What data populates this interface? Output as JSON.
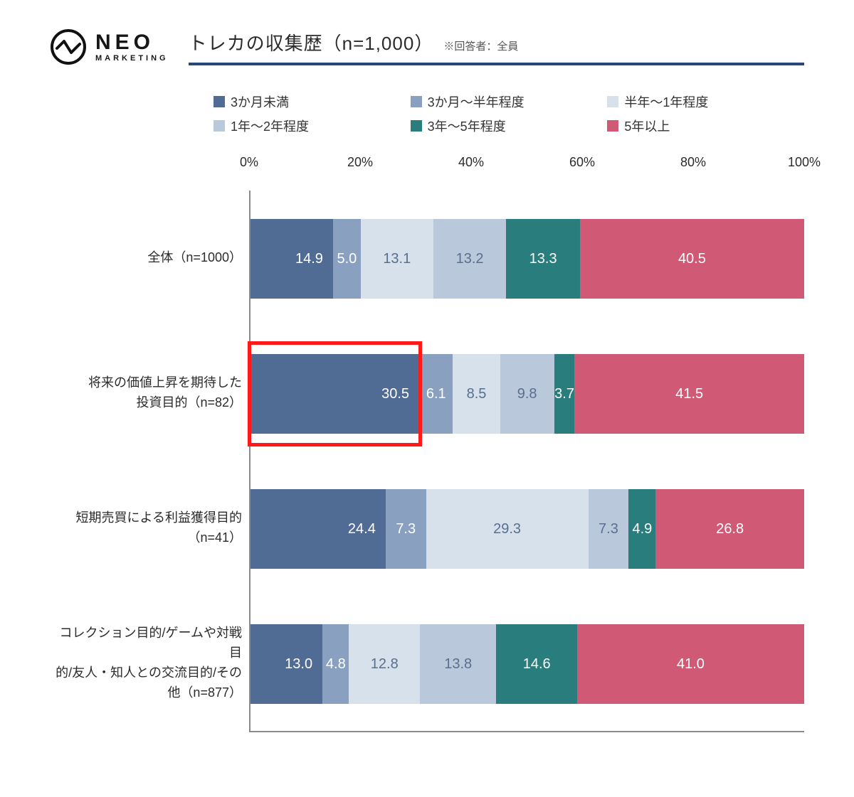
{
  "logo": {
    "brand": "NEO",
    "sub": "MARKETING"
  },
  "title": "トレカの収集歴（n=1,000）",
  "title_note": "※回答者：全員",
  "chart": {
    "type": "stacked-bar-horizontal",
    "x_axis": {
      "min": 0,
      "max": 100,
      "tick_step": 20,
      "suffix": "%",
      "ticks": [
        "0%",
        "20%",
        "40%",
        "60%",
        "80%",
        "100%"
      ]
    },
    "series": [
      {
        "key": "s1",
        "label": "3か月未満",
        "color": "#516c94"
      },
      {
        "key": "s2",
        "label": "3か月～半年程度",
        "color": "#8aa0c0"
      },
      {
        "key": "s3",
        "label": "半年～1年程度",
        "color": "#d7e1ec"
      },
      {
        "key": "s4",
        "label": "1年～2年程度",
        "color": "#b9c9db"
      },
      {
        "key": "s5",
        "label": "3年～5年程度",
        "color": "#2a7d7d"
      },
      {
        "key": "s6",
        "label": "5年以上",
        "color": "#d05a76"
      }
    ],
    "legend_layout": [
      [
        "s1",
        "s2",
        "s3"
      ],
      [
        "s4",
        "s5",
        "s6"
      ]
    ],
    "rows": [
      {
        "label": "全体（n=1000）",
        "values": [
          14.9,
          5.0,
          13.1,
          13.2,
          13.3,
          40.5
        ]
      },
      {
        "label": "将来の価値上昇を期待した\n投資目的（n=82）",
        "values": [
          30.5,
          6.1,
          8.5,
          9.8,
          3.7,
          41.5
        ],
        "highlight_first_segment": true
      },
      {
        "label": "短期売買による利益獲得目的\n（n=41）",
        "values": [
          24.4,
          7.3,
          29.3,
          7.3,
          4.9,
          26.8
        ]
      },
      {
        "label": "コレクション目的/ゲームや対戦目\n的/友人・知人との交流目的/その\n他（n=877）",
        "values": [
          13.0,
          4.8,
          12.8,
          13.8,
          14.6,
          41.0
        ]
      }
    ],
    "value_label_fontsize": 20,
    "value_label_color_on_light": "#5a6e8f",
    "background_color": "#ffffff",
    "axis_color": "#8a8a8a",
    "highlight_border_color": "#ff1a1a",
    "highlight_border_width": 5
  }
}
